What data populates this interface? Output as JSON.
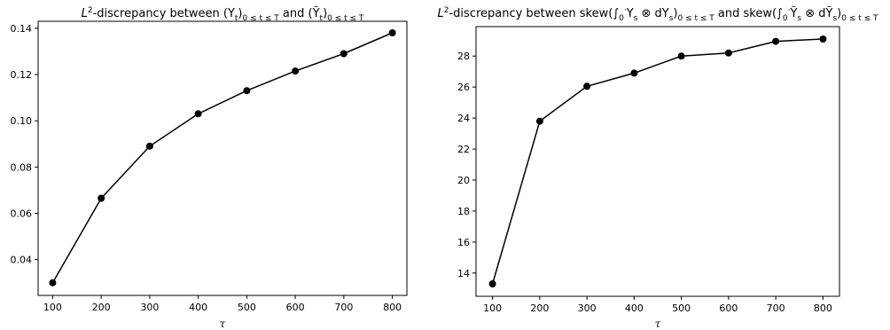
{
  "chart_data": [
    {
      "type": "line",
      "title": {
        "prefix": "L",
        "sup": "2",
        "mid": "-discrepancy between (Y",
        "sub1": "t",
        "mid2": ")",
        "sub2": "0 ≤ t ≤ T",
        "mid3": " and (Ỹ",
        "sub3": "t",
        "mid4": ")",
        "sub4": "0 ≤ t ≤ T"
      },
      "xlabel": "τ",
      "ylabel": "",
      "x": [
        100,
        200,
        300,
        400,
        500,
        600,
        700,
        800
      ],
      "y": [
        0.03,
        0.0665,
        0.089,
        0.103,
        0.113,
        0.1215,
        0.129,
        0.138
      ],
      "xlim": [
        70,
        830
      ],
      "ylim": [
        0.0245,
        0.143
      ],
      "xticks": [
        100,
        200,
        300,
        400,
        500,
        600,
        700,
        800
      ],
      "yticks": [
        0.04,
        0.06,
        0.08,
        0.1,
        0.12,
        0.14
      ],
      "ytick_labels": [
        "0.04",
        "0.06",
        "0.08",
        "0.10",
        "0.12",
        "0.14"
      ],
      "color": "#000000",
      "marker": "circle",
      "grid": false
    },
    {
      "type": "line",
      "title": {
        "prefix": "L",
        "sup": "2",
        "mid": "-discrepancy between skew(∫",
        "int_sub": "0",
        "int_sup": "·",
        "mid2": "Y",
        "sub1": "s",
        "mid3": " ⊗ dY",
        "sub2": "s",
        "mid4": ")",
        "sub3": "0 ≤ t ≤ T",
        "mid5": " and skew(∫",
        "int_sub2": "0",
        "int_sup2": "·",
        "mid6": "Ỹ",
        "sub4": "s",
        "mid7": " ⊗ dỸ",
        "sub5": "s",
        "mid8": ")",
        "sub6": "0 ≤ t ≤ T"
      },
      "xlabel": "τ",
      "ylabel": "",
      "x": [
        100,
        200,
        300,
        400,
        500,
        600,
        700,
        800
      ],
      "y": [
        13.3,
        23.8,
        26.05,
        26.9,
        28.0,
        28.2,
        28.95,
        29.1
      ],
      "xlim": [
        65,
        835
      ],
      "ylim": [
        12.5,
        29.9
      ],
      "xticks": [
        100,
        200,
        300,
        400,
        500,
        600,
        700,
        800
      ],
      "yticks": [
        14,
        16,
        18,
        20,
        22,
        24,
        26,
        28
      ],
      "ytick_labels": [
        "14",
        "16",
        "18",
        "20",
        "22",
        "24",
        "26",
        "28"
      ],
      "color": "#000000",
      "marker": "circle",
      "grid": false
    }
  ]
}
